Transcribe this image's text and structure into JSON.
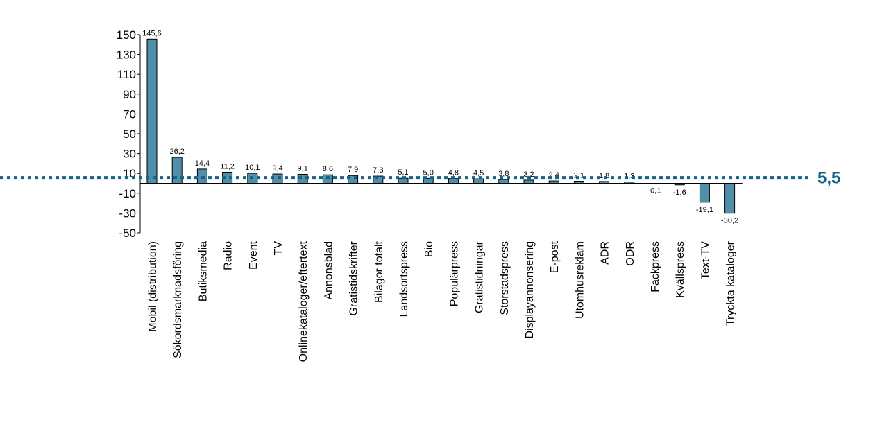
{
  "chart_data": {
    "type": "bar",
    "title": "",
    "xlabel": "",
    "ylabel": "",
    "ylim": [
      -50,
      150
    ],
    "yticks": [
      150,
      130,
      110,
      90,
      70,
      50,
      30,
      10,
      -10,
      -30,
      -50
    ],
    "categories": [
      "Mobil (distribution)",
      "Sökordsmarknadsföring",
      "Butiksmedia",
      "Radio",
      "Event",
      "TV",
      "Onlinekataloger/eftertext",
      "Annonsblad",
      "Gratistidskrifter",
      "Bilagor totalt",
      "Landsortspress",
      "Bio",
      "Populärpress",
      "Gratistidningar",
      "Storstadspress",
      "Displayannonsering",
      "E-post",
      "Utomhusreklam",
      "ADR",
      "ODR",
      "Fackpress",
      "Kvällspress",
      "Text-TV",
      "Tryckta kataloger"
    ],
    "values": [
      145.6,
      26.2,
      14.4,
      11.2,
      10.1,
      9.4,
      9.1,
      8.6,
      7.9,
      7.3,
      5.1,
      5.0,
      4.8,
      4.5,
      3.8,
      3.2,
      2.4,
      2.1,
      1.8,
      1.3,
      -0.1,
      -1.6,
      -19.1,
      -30.2
    ],
    "value_labels": [
      "145,6",
      "26,2",
      "14,4",
      "11,2",
      "10,1",
      "9,4",
      "9,1",
      "8,6",
      "7,9",
      "7,3",
      "5,1",
      "5,0",
      "4,8",
      "4,5",
      "3,8",
      "3,2",
      "2,4",
      "2,1",
      "1,8",
      "1,3",
      "-0,1",
      "-1,6",
      "-19,1",
      "-30,2"
    ],
    "reference_line": {
      "value": 5.5,
      "label": "5,5",
      "style": "dotted"
    },
    "grid": false,
    "legend": "none",
    "colors": {
      "bar": "#4f8faa",
      "reference": "#13628a"
    }
  }
}
